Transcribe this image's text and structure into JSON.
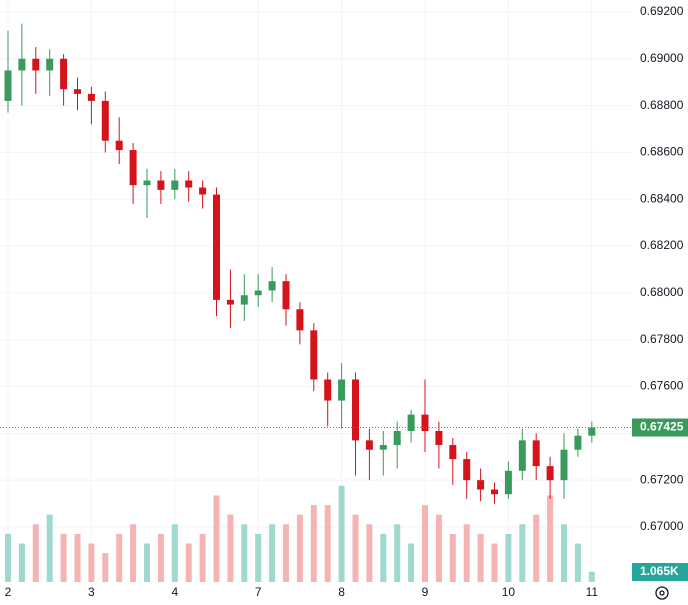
{
  "chart_data": {
    "type": "candlestick",
    "categories": [
      "2",
      null,
      null,
      null,
      null,
      null,
      "3",
      null,
      null,
      null,
      null,
      null,
      "4",
      null,
      null,
      null,
      null,
      null,
      "7",
      null,
      null,
      null,
      null,
      null,
      "8",
      null,
      null,
      null,
      null,
      null,
      "9",
      null,
      null,
      null,
      null,
      null,
      "10",
      null,
      null,
      null,
      null,
      null,
      "11"
    ],
    "open": [
      0.6882,
      0.6895,
      0.69,
      0.6895,
      0.69,
      0.6887,
      0.6885,
      0.6882,
      0.6865,
      0.6861,
      0.6846,
      0.6848,
      0.6844,
      0.6848,
      0.6845,
      0.6842,
      0.6797,
      0.6795,
      0.6799,
      0.6801,
      0.6805,
      0.6793,
      0.6784,
      0.6763,
      0.6754,
      0.6763,
      0.6737,
      0.6733,
      0.6735,
      0.6741,
      0.6748,
      0.6741,
      0.6735,
      0.6729,
      0.672,
      0.6716,
      0.6714,
      0.6724,
      0.6737,
      0.6726,
      0.672,
      0.6733,
      0.6739
    ],
    "high": [
      0.6912,
      0.6915,
      0.6905,
      0.6904,
      0.6902,
      0.6892,
      0.6888,
      0.6886,
      0.6875,
      0.6864,
      0.6853,
      0.6852,
      0.6853,
      0.6852,
      0.6848,
      0.6845,
      0.681,
      0.6808,
      0.6808,
      0.6811,
      0.6808,
      0.6796,
      0.6787,
      0.6766,
      0.677,
      0.6766,
      0.6742,
      0.6741,
      0.6745,
      0.675,
      0.6763,
      0.6745,
      0.6738,
      0.6732,
      0.6725,
      0.6719,
      0.6728,
      0.6742,
      0.674,
      0.673,
      0.674,
      0.6742,
      0.6745
    ],
    "low": [
      0.6877,
      0.688,
      0.6885,
      0.6884,
      0.688,
      0.6878,
      0.6872,
      0.686,
      0.6855,
      0.6838,
      0.6832,
      0.6838,
      0.684,
      0.6839,
      0.6836,
      0.679,
      0.6785,
      0.6788,
      0.6794,
      0.6796,
      0.6786,
      0.6778,
      0.6758,
      0.6743,
      0.6742,
      0.6722,
      0.672,
      0.6722,
      0.6725,
      0.6736,
      0.6732,
      0.6725,
      0.6718,
      0.6712,
      0.6711,
      0.671,
      0.6712,
      0.672,
      0.672,
      0.6712,
      0.6712,
      0.673,
      0.6736
    ],
    "close": [
      0.6895,
      0.69,
      0.6895,
      0.69,
      0.6887,
      0.6885,
      0.6882,
      0.6865,
      0.6861,
      0.6846,
      0.6848,
      0.6844,
      0.6848,
      0.6845,
      0.6842,
      0.6797,
      0.6795,
      0.6799,
      0.6801,
      0.6805,
      0.6793,
      0.6784,
      0.6763,
      0.6754,
      0.6763,
      0.6737,
      0.6733,
      0.6735,
      0.6741,
      0.6748,
      0.6741,
      0.6735,
      0.6729,
      0.672,
      0.6716,
      0.6714,
      0.6724,
      0.6737,
      0.6726,
      0.672,
      0.6733,
      0.6739,
      0.67425
    ],
    "volume": [
      5,
      4,
      6,
      7,
      5,
      5,
      4,
      3,
      5,
      6,
      4,
      5,
      6,
      4,
      5,
      9,
      7,
      6,
      5,
      6,
      6,
      7,
      8,
      8,
      10,
      7,
      6,
      5,
      6,
      4,
      8,
      7,
      5,
      6,
      5,
      4,
      5,
      6,
      7,
      9,
      6,
      4,
      1.065
    ],
    "volume_label": "1.065K",
    "vlim": [
      0,
      13
    ],
    "up_color": "#3a9a5c",
    "down_color": "#d4131b",
    "up_volume_color": "#9fd8cc",
    "down_volume_color": "#f6b3b3",
    "ylim": [
      0.66765,
      0.69251
    ],
    "yticks": [
      {
        "value": 0.67,
        "label": "0.67000"
      },
      {
        "value": 0.672,
        "label": "0.67200"
      },
      {
        "value": 0.674,
        "label": "0.67400"
      },
      {
        "value": 0.676,
        "label": "0.67600"
      },
      {
        "value": 0.678,
        "label": "0.67800"
      },
      {
        "value": 0.68,
        "label": "0.68000"
      },
      {
        "value": 0.682,
        "label": "0.68200"
      },
      {
        "value": 0.684,
        "label": "0.68400"
      },
      {
        "value": 0.686,
        "label": "0.68600"
      },
      {
        "value": 0.688,
        "label": "0.68800"
      },
      {
        "value": 0.69,
        "label": "0.69000"
      },
      {
        "value": 0.692,
        "label": "0.69200"
      }
    ],
    "grid": true
  }
}
